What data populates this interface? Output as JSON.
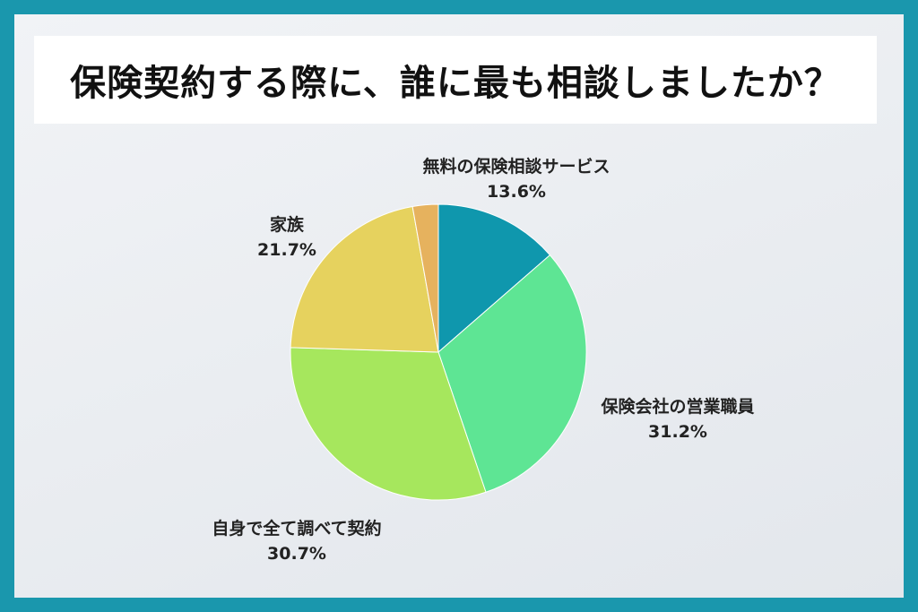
{
  "title": "保険契約する際に、誰に最も相談しましたか？",
  "chart_data": {
    "type": "pie",
    "title": "保険契約する際に、誰に最も相談しましたか？",
    "slices": [
      {
        "label": "無料の保険相談サービス",
        "value": 13.6,
        "value_label": "13.6%",
        "color": "#0f97ad"
      },
      {
        "label": "保険会社の営業職員",
        "value": 31.2,
        "value_label": "31.2%",
        "color": "#5ee594"
      },
      {
        "label": "自身で全て調べて契約",
        "value": 30.7,
        "value_label": "30.7%",
        "color": "#a6e75d"
      },
      {
        "label": "家族",
        "value": 21.7,
        "value_label": "21.7%",
        "color": "#e6d25e"
      },
      {
        "label": "",
        "value": 2.8,
        "value_label": "",
        "color": "#e6b25e"
      }
    ]
  }
}
